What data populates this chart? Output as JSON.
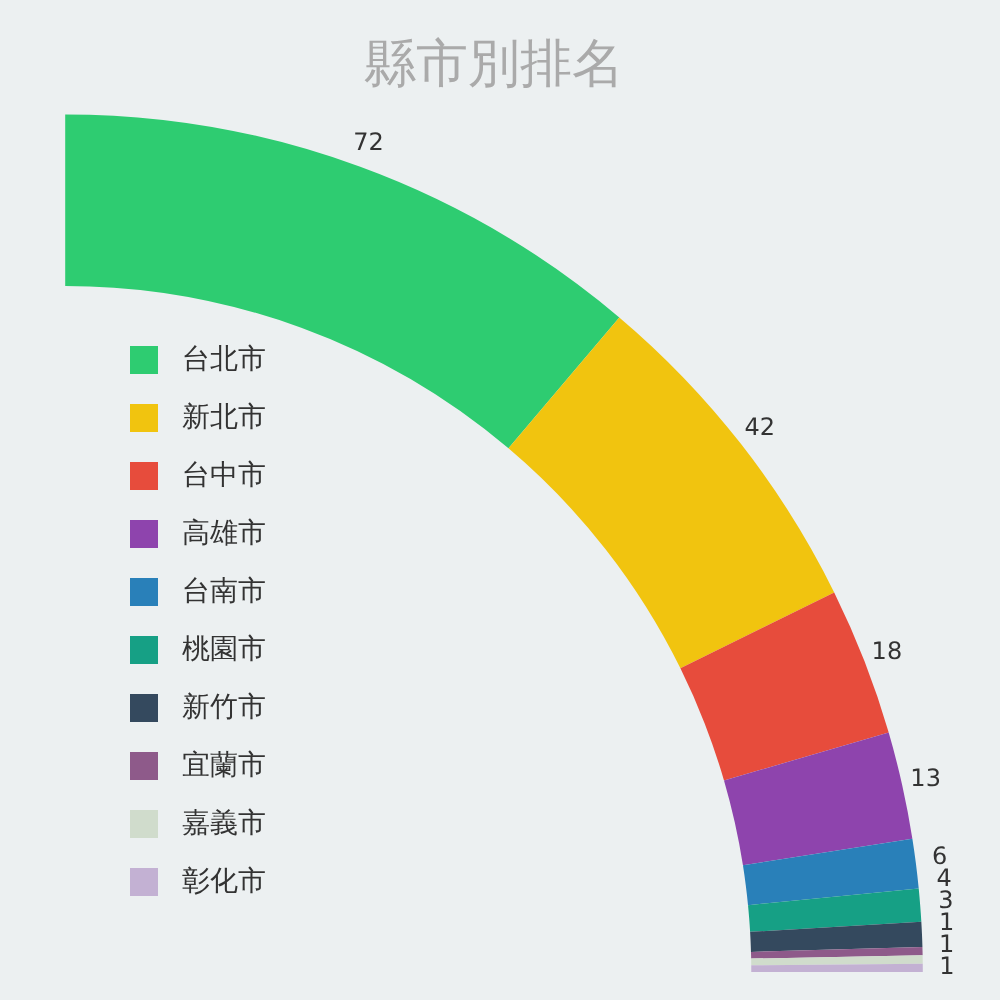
{
  "chart_data": {
    "type": "donut",
    "title": "縣市別排名",
    "categories": [
      "台北市",
      "新北市",
      "台中市",
      "高雄市",
      "台南市",
      "桃園市",
      "新竹市",
      "宜蘭市",
      "嘉義市",
      "彰化市"
    ],
    "values": [
      72,
      42,
      18,
      13,
      6,
      4,
      3,
      1,
      1,
      1
    ],
    "colors": [
      "#2ecc71",
      "#f1c40f",
      "#e74c3c",
      "#8e44ad",
      "#2980b9",
      "#16a085",
      "#34495e",
      "#8e5a8a",
      "#d0dccc",
      "#c3b1d3"
    ],
    "data_labels": true,
    "legend": "left"
  }
}
